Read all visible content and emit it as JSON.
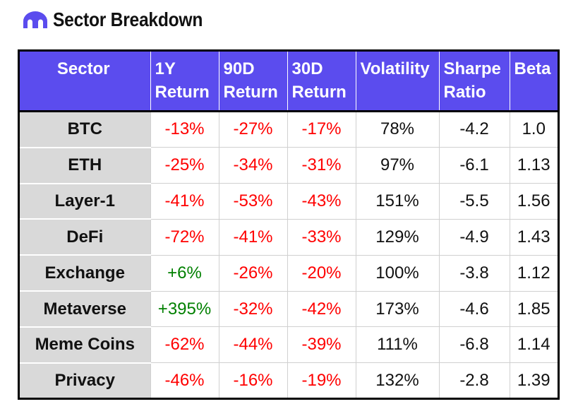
{
  "title": "Sector Breakdown",
  "logo_icon": "arch-logo-icon",
  "colors": {
    "header_bg": "#5b4cee",
    "negative": "#ff0000",
    "positive": "#008000",
    "sector_bg": "#d9d9d9"
  },
  "columns": [
    {
      "line1": "Sector",
      "line2": ""
    },
    {
      "line1": "1Y",
      "line2": "Return"
    },
    {
      "line1": "90D",
      "line2": "Return"
    },
    {
      "line1": "30D",
      "line2": "Return"
    },
    {
      "line1": "Volatility",
      "line2": ""
    },
    {
      "line1": "Sharpe",
      "line2": "Ratio"
    },
    {
      "line1": "Beta",
      "line2": ""
    }
  ],
  "rows": [
    {
      "sector": "BTC",
      "r1y": "-13%",
      "r90d": "-27%",
      "r30d": "-17%",
      "volatility": "78%",
      "sharpe": "-4.2",
      "beta": "1.0"
    },
    {
      "sector": "ETH",
      "r1y": "-25%",
      "r90d": "-34%",
      "r30d": "-31%",
      "volatility": "97%",
      "sharpe": "-6.1",
      "beta": "1.13"
    },
    {
      "sector": "Layer-1",
      "r1y": "-41%",
      "r90d": "-53%",
      "r30d": "-43%",
      "volatility": "151%",
      "sharpe": "-5.5",
      "beta": "1.56"
    },
    {
      "sector": "DeFi",
      "r1y": "-72%",
      "r90d": "-41%",
      "r30d": "-33%",
      "volatility": "129%",
      "sharpe": "-4.9",
      "beta": "1.43"
    },
    {
      "sector": "Exchange",
      "r1y": "+6%",
      "r90d": "-26%",
      "r30d": "-20%",
      "volatility": "100%",
      "sharpe": "-3.8",
      "beta": "1.12"
    },
    {
      "sector": "Metaverse",
      "r1y": "+395%",
      "r90d": "-32%",
      "r30d": "-42%",
      "volatility": "173%",
      "sharpe": "-4.6",
      "beta": "1.85"
    },
    {
      "sector": "Meme Coins",
      "r1y": "-62%",
      "r90d": "-44%",
      "r30d": "-39%",
      "volatility": "111%",
      "sharpe": "-6.8",
      "beta": "1.14"
    },
    {
      "sector": "Privacy",
      "r1y": "-46%",
      "r90d": "-16%",
      "r30d": "-19%",
      "volatility": "132%",
      "sharpe": "-2.8",
      "beta": "1.39"
    }
  ]
}
